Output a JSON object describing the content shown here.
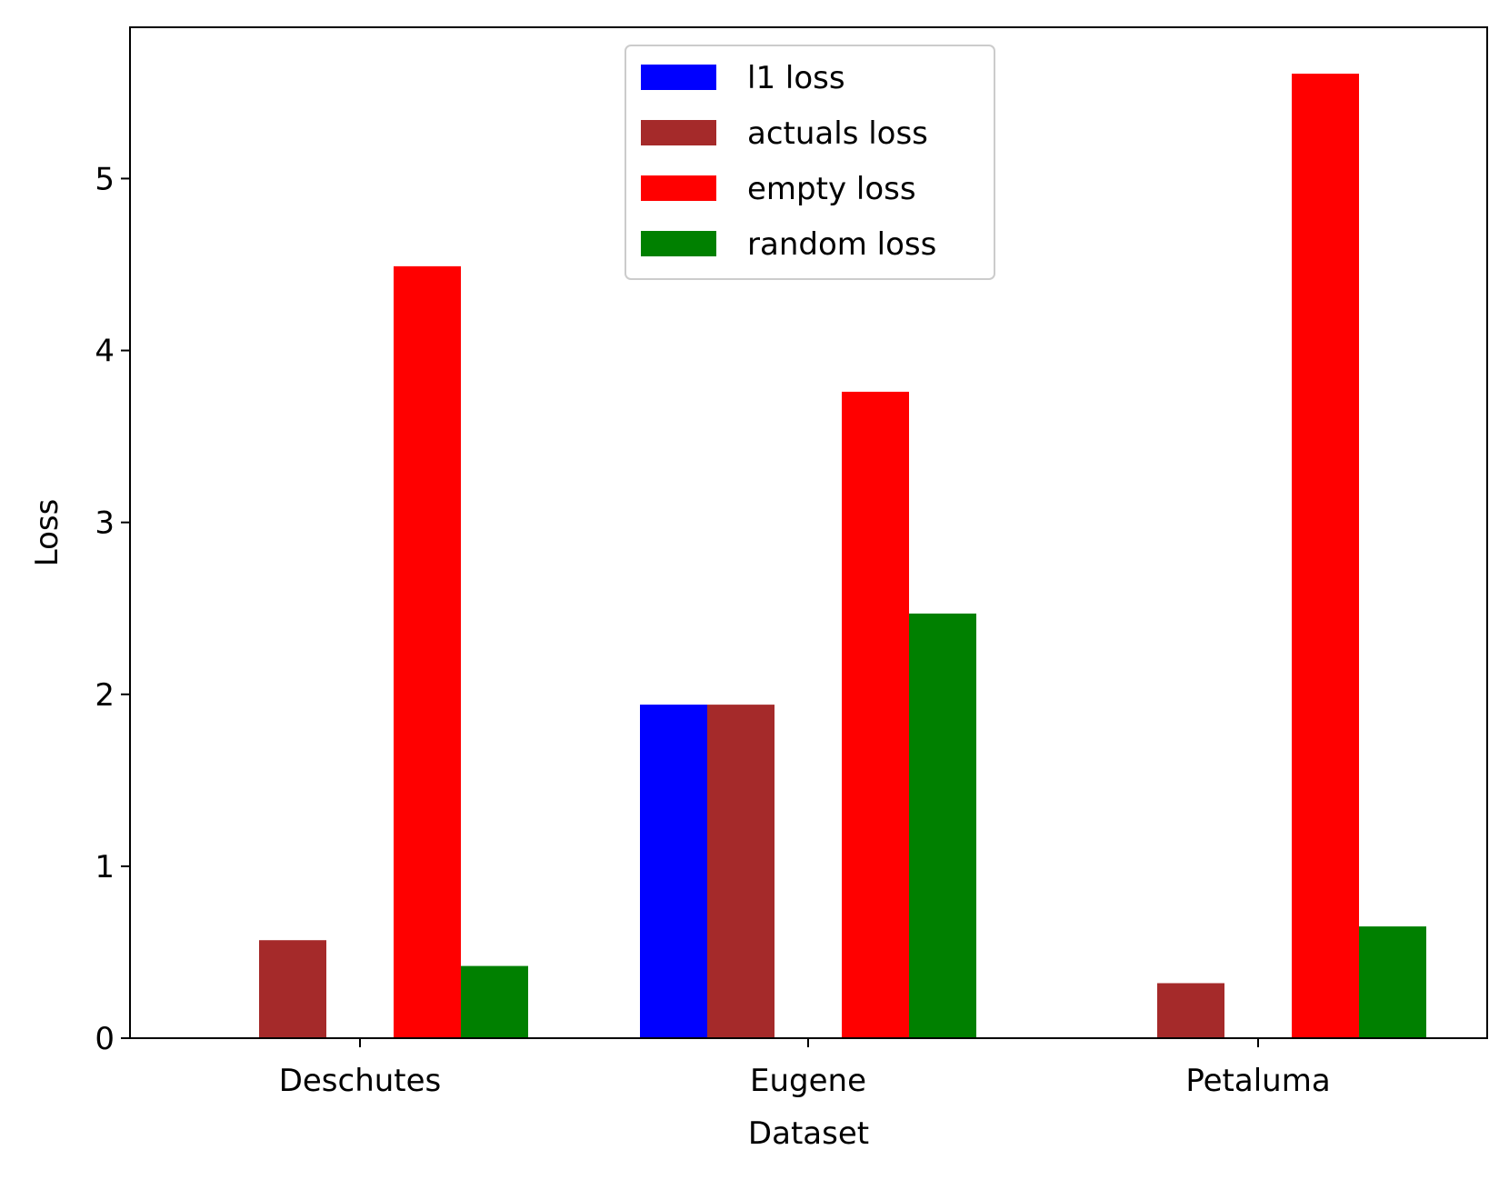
{
  "chart_data": {
    "type": "bar",
    "title": "",
    "xlabel": "Dataset",
    "ylabel": "Loss",
    "categories": [
      "Deschutes",
      "Eugene",
      "Petaluma"
    ],
    "ylim": [
      0,
      5.88
    ],
    "yticks": [
      "0",
      "1",
      "2",
      "3",
      "4",
      "5"
    ],
    "grid": false,
    "legend_position": "upper center",
    "series": [
      {
        "name": "l1 loss",
        "color": "#0000ff",
        "values": [
          0,
          1.94,
          0
        ]
      },
      {
        "name": "actuals loss",
        "color": "#a52a2a",
        "values": [
          0.57,
          1.94,
          0.32
        ]
      },
      {
        "name": "empty loss",
        "color": "#ff0000",
        "values": [
          4.49,
          3.76,
          5.61
        ]
      },
      {
        "name": "random loss",
        "color": "#008000",
        "values": [
          0.42,
          2.47,
          0.65
        ]
      }
    ]
  }
}
